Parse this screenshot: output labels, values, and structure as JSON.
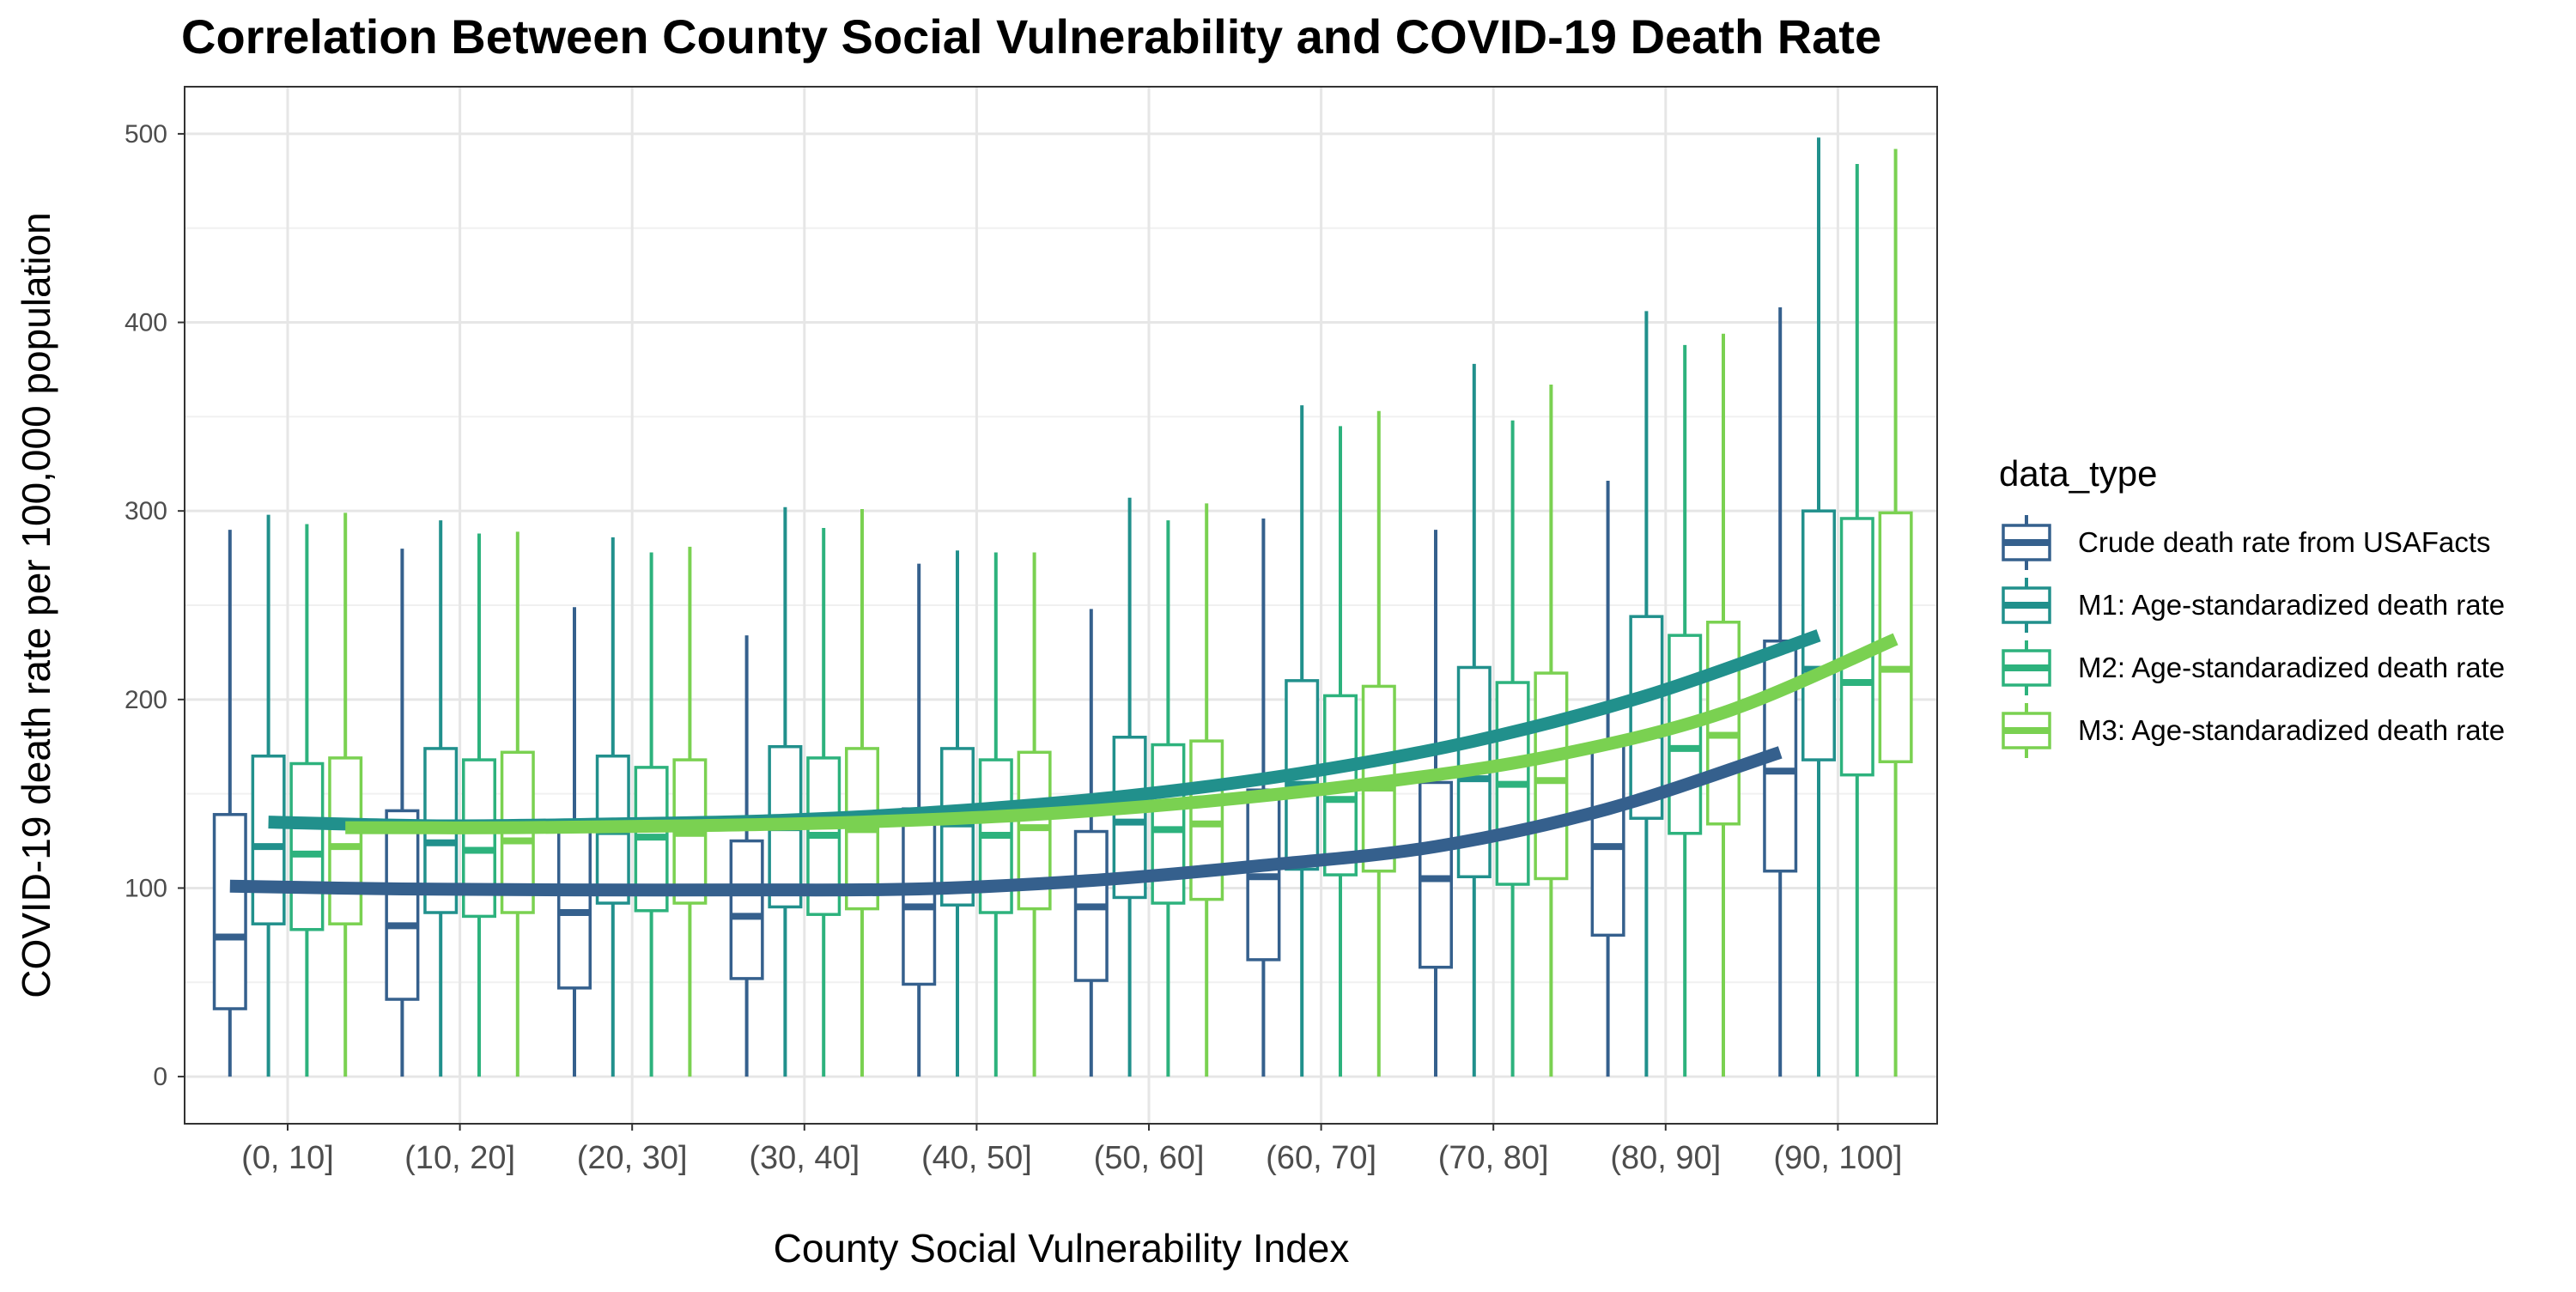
{
  "chart_data": {
    "type": "box",
    "title": "Correlation Between County Social Vulnerability and COVID-19 Death Rate",
    "xlabel": "County Social Vulnerability Index",
    "ylabel": "COVID-19 death rate per 100,000 population",
    "ylim": [
      -25,
      525
    ],
    "yticks": [
      0,
      100,
      200,
      300,
      400,
      500
    ],
    "grid": true,
    "categories": [
      "(0, 10]",
      "(10, 20]",
      "(20, 30]",
      "(30, 40]",
      "(40, 50]",
      "(50, 60]",
      "(60, 70]",
      "(70, 80]",
      "(80, 90]",
      "(90, 100]"
    ],
    "legend": {
      "title": "data_type",
      "position": "right"
    },
    "series": [
      {
        "name": "Crude death rate from USAFacts",
        "color": "#35608d",
        "boxes": [
          {
            "min": 0,
            "q1": 36,
            "median": 74,
            "q3": 139,
            "max": 290
          },
          {
            "min": 0,
            "q1": 41,
            "median": 80,
            "q3": 141,
            "max": 280
          },
          {
            "min": 0,
            "q1": 47,
            "median": 87,
            "q3": 131,
            "max": 249
          },
          {
            "min": 0,
            "q1": 52,
            "median": 85,
            "q3": 125,
            "max": 234
          },
          {
            "min": 0,
            "q1": 49,
            "median": 90,
            "q3": 142,
            "max": 272
          },
          {
            "min": 0,
            "q1": 51,
            "median": 90,
            "q3": 130,
            "max": 248
          },
          {
            "min": 0,
            "q1": 62,
            "median": 106,
            "q3": 152,
            "max": 296
          },
          {
            "min": 0,
            "q1": 58,
            "median": 105,
            "q3": 156,
            "max": 290
          },
          {
            "min": 0,
            "q1": 75,
            "median": 122,
            "q3": 177,
            "max": 316
          },
          {
            "min": 0,
            "q1": 109,
            "median": 162,
            "q3": 231,
            "max": 408
          }
        ],
        "trend": [
          101,
          99.5,
          99,
          99,
          99.5,
          104,
          112,
          122,
          142,
          172
        ]
      },
      {
        "name": "M1: Age-standaradized death rate",
        "color": "#21908c",
        "boxes": [
          {
            "min": 0,
            "q1": 81,
            "median": 122,
            "q3": 170,
            "max": 298
          },
          {
            "min": 0,
            "q1": 87,
            "median": 124,
            "q3": 174,
            "max": 295
          },
          {
            "min": 0,
            "q1": 92,
            "median": 130,
            "q3": 170,
            "max": 286
          },
          {
            "min": 0,
            "q1": 90,
            "median": 132,
            "q3": 175,
            "max": 302
          },
          {
            "min": 0,
            "q1": 91,
            "median": 134,
            "q3": 174,
            "max": 279
          },
          {
            "min": 0,
            "q1": 95,
            "median": 135,
            "q3": 180,
            "max": 307
          },
          {
            "min": 0,
            "q1": 110,
            "median": 155,
            "q3": 210,
            "max": 356
          },
          {
            "min": 0,
            "q1": 106,
            "median": 158,
            "q3": 217,
            "max": 378
          },
          {
            "min": 0,
            "q1": 137,
            "median": 181,
            "q3": 244,
            "max": 406
          },
          {
            "min": 0,
            "q1": 168,
            "median": 216,
            "q3": 300,
            "max": 498
          }
        ],
        "trend": [
          135,
          133,
          134,
          136,
          141,
          149,
          161,
          178,
          202,
          234
        ]
      },
      {
        "name": "M2: Age-standaradized death rate",
        "color": "#2db27d",
        "boxes": [
          {
            "min": 0,
            "q1": 78,
            "median": 118,
            "q3": 166,
            "max": 293
          },
          {
            "min": 0,
            "q1": 85,
            "median": 120,
            "q3": 168,
            "max": 288
          },
          {
            "min": 0,
            "q1": 88,
            "median": 127,
            "q3": 164,
            "max": 278
          },
          {
            "min": 0,
            "q1": 86,
            "median": 128,
            "q3": 169,
            "max": 291
          },
          {
            "min": 0,
            "q1": 87,
            "median": 128,
            "q3": 168,
            "max": 278
          },
          {
            "min": 0,
            "q1": 92,
            "median": 131,
            "q3": 176,
            "max": 295
          },
          {
            "min": 0,
            "q1": 107,
            "median": 147,
            "q3": 202,
            "max": 345
          },
          {
            "min": 0,
            "q1": 102,
            "median": 155,
            "q3": 209,
            "max": 348
          },
          {
            "min": 0,
            "q1": 129,
            "median": 174,
            "q3": 234,
            "max": 388
          },
          {
            "min": 0,
            "q1": 160,
            "median": 209,
            "q3": 296,
            "max": 484
          }
        ]
      },
      {
        "name": "M3: Age-standaradized death rate",
        "color": "#7ad151",
        "boxes": [
          {
            "min": 0,
            "q1": 81,
            "median": 122,
            "q3": 169,
            "max": 299
          },
          {
            "min": 0,
            "q1": 87,
            "median": 125,
            "q3": 172,
            "max": 289
          },
          {
            "min": 0,
            "q1": 92,
            "median": 129,
            "q3": 168,
            "max": 281
          },
          {
            "min": 0,
            "q1": 89,
            "median": 131,
            "q3": 174,
            "max": 301
          },
          {
            "min": 0,
            "q1": 89,
            "median": 132,
            "q3": 172,
            "max": 278
          },
          {
            "min": 0,
            "q1": 94,
            "median": 134,
            "q3": 178,
            "max": 304
          },
          {
            "min": 0,
            "q1": 109,
            "median": 153,
            "q3": 207,
            "max": 353
          },
          {
            "min": 0,
            "q1": 105,
            "median": 157,
            "q3": 214,
            "max": 367
          },
          {
            "min": 0,
            "q1": 134,
            "median": 181,
            "q3": 241,
            "max": 394
          },
          {
            "min": 0,
            "q1": 167,
            "median": 216,
            "q3": 299,
            "max": 492
          }
        ],
        "trend": [
          132,
          132,
          133,
          135,
          139,
          146,
          156,
          170,
          193,
          232
        ]
      }
    ]
  }
}
